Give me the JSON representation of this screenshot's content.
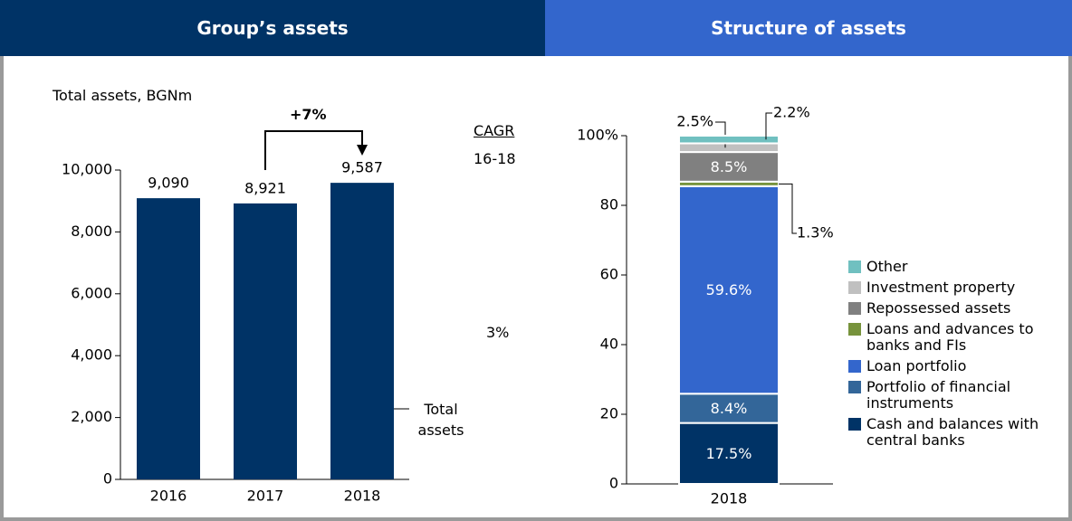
{
  "chart_data": [
    {
      "type": "bar",
      "title": "Group’s assets",
      "subtitle": "Total assets, BGNm",
      "categories": [
        "2016",
        "2017",
        "2018"
      ],
      "series": [
        {
          "name": "Total assets",
          "color": "#003366",
          "values": [
            9090,
            8921,
            9587
          ],
          "value_labels": [
            "9,090",
            "8,921",
            "9,587"
          ]
        }
      ],
      "ylim": [
        0,
        10000
      ],
      "yticks": [
        0,
        {
          "value": 2000,
          "label": "2,000"
        },
        {
          "value": 4000,
          "label": "4,000"
        },
        {
          "value": 6000,
          "label": "6,000"
        },
        {
          "value": 8000,
          "label": "8,000"
        },
        {
          "value": 10000,
          "label": "10,000"
        }
      ],
      "annotations": [
        "+7%",
        "CAGR",
        "16-18",
        "3%"
      ],
      "header_color": "#003366"
    },
    {
      "type": "stacked_bar",
      "title": "Structure of assets",
      "categories": [
        "2018"
      ],
      "series": [
        {
          "name": "Cash and balances with central banks",
          "color": "#003366",
          "values": [
            17.5
          ],
          "value_labels": [
            "17.5%"
          ]
        },
        {
          "name": "Portfolio of financial instruments",
          "color": "#336699",
          "values": [
            8.4
          ],
          "value_labels": [
            "8.4%"
          ]
        },
        {
          "name": "Loan portfolio",
          "color": "#3366cc",
          "values": [
            59.6
          ],
          "value_labels": [
            "59.6%"
          ]
        },
        {
          "name": "Loans and advances to banks and FIs",
          "color": "#77933c",
          "values": [
            1.3
          ],
          "value_labels": [
            "1.3%"
          ]
        },
        {
          "name": "Repossessed assets",
          "color": "#808080",
          "values": [
            8.5
          ],
          "value_labels": [
            "8.5%"
          ]
        },
        {
          "name": "Investment property",
          "color": "#c0c0c0",
          "values": [
            2.5
          ],
          "value_labels": [
            "2.5%"
          ]
        },
        {
          "name": "Other",
          "color": "#70c0c0",
          "values": [
            2.2
          ],
          "value_labels": [
            "2.2%"
          ]
        }
      ],
      "ylim": [
        0,
        100
      ],
      "yticks": [
        0,
        20,
        40,
        60,
        80,
        {
          "value": 100,
          "label": "100%"
        }
      ],
      "header_color": "#3366cc"
    }
  ]
}
